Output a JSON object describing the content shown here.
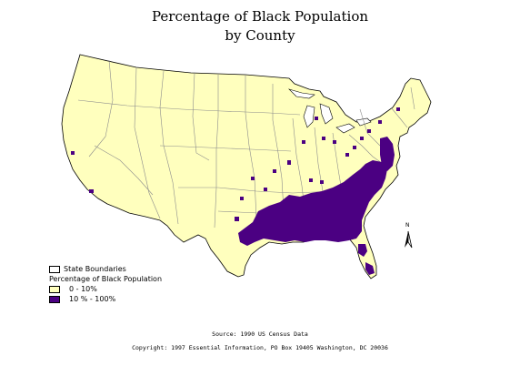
{
  "title": {
    "line1": "Percentage of Black Population",
    "line2": "by County"
  },
  "legend": {
    "boundaries_label": "State Boundaries",
    "heading": "Percentage of Black Population",
    "classes": [
      {
        "label": "0 - 10%",
        "color": "#ffffbe"
      },
      {
        "label": "10 % - 100%",
        "color": "#4b0082"
      }
    ]
  },
  "north_label": "N",
  "footer": {
    "source": "Source:   1990 US Census Data",
    "copyright": "Copyright:   1997 Essential Information, PO Box 19405 Washington, DC 20036"
  },
  "colors": {
    "low": "#ffffbe",
    "high": "#4b0082",
    "boundary": "#8c8c8c"
  }
}
